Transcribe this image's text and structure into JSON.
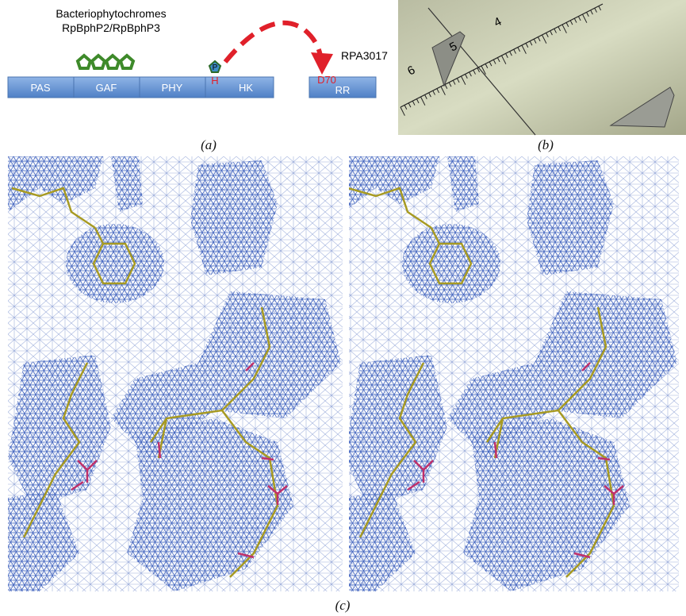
{
  "panel_a": {
    "title_line1": "Bacteriophytochromes",
    "title_line2": "RpBphP2/RpBphP3",
    "domains": [
      "PAS",
      "GAF",
      "PHY",
      "HK"
    ],
    "response_domain": "RR",
    "phospho": "P",
    "histidine": "H",
    "aspartate": "D70",
    "response_gene": "RPA3017",
    "label": "(a)"
  },
  "panel_b": {
    "ruler": [
      "4",
      "5",
      "6"
    ],
    "label": "(b)"
  },
  "panel_c": {
    "label": "(c)"
  }
}
